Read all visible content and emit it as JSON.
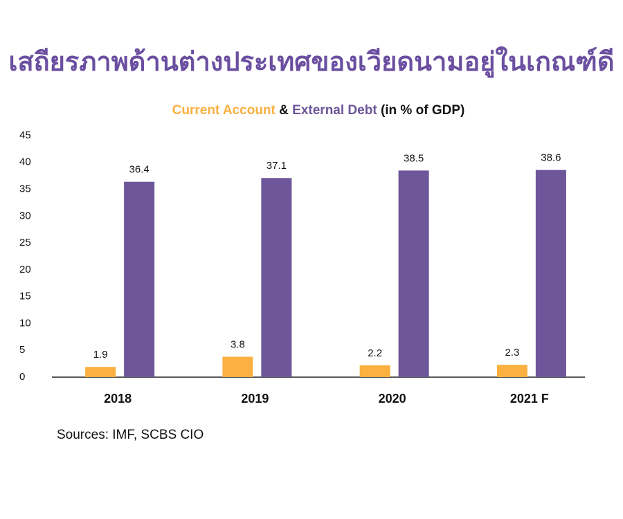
{
  "chart_data": {
    "type": "bar",
    "title": "เสถียรภาพด้านต่างประเทศของเวียดนามอยู่ในเกณฑ์ดี",
    "subtitle_joiner": "&",
    "subtitle_suffix": "(in % of GDP)",
    "categories": [
      "2018",
      "2019",
      "2020",
      "2021 F"
    ],
    "series": [
      {
        "name": "Current Account",
        "color": "#fbb040",
        "values": [
          1.9,
          3.8,
          2.2,
          2.3
        ]
      },
      {
        "name": "External Debt",
        "color": "#6d5699",
        "values": [
          36.4,
          37.1,
          38.5,
          38.6
        ]
      }
    ],
    "ylim": [
      0,
      45
    ],
    "yticks": [
      0,
      5,
      10,
      15,
      20,
      25,
      30,
      35,
      40,
      45
    ],
    "grid": false,
    "source": "Sources: IMF, SCBS CIO"
  }
}
